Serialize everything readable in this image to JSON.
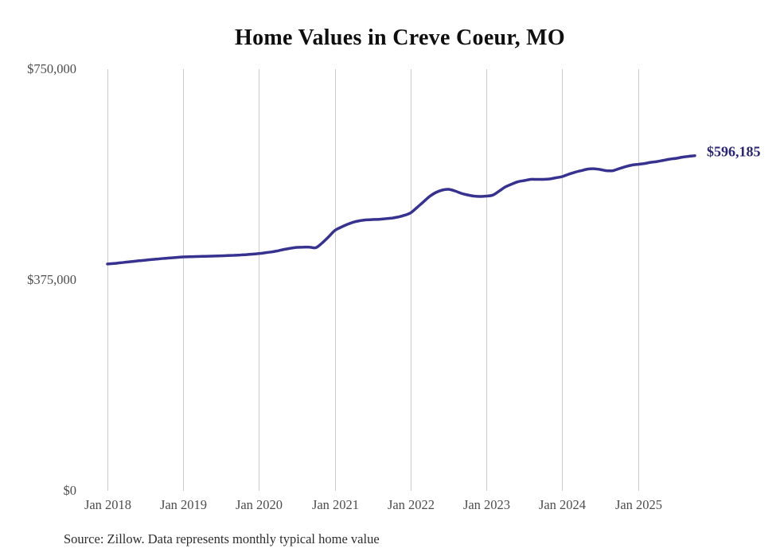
{
  "chart": {
    "title": "Home Values in Creve Coeur, MO",
    "source_note": "Source: Zillow. Data represents monthly typical home value",
    "end_label": "$596,185",
    "colors": {
      "line": "#37318f",
      "end_label": "#2b2575",
      "grid": "#cccccc",
      "axis_text": "#4d4d4d",
      "title_text": "#0f0f0f",
      "source_text": "#2d2d2d",
      "background": "#ffffff"
    }
  },
  "chart_data": {
    "type": "line",
    "title": "Home Values in Creve Coeur, MO",
    "xlabel": "",
    "ylabel": "",
    "ylim": [
      0,
      750000
    ],
    "grid": "vertical-only",
    "legend": "none",
    "y_ticks": {
      "values": [
        0,
        375000,
        750000
      ],
      "labels": [
        "$0",
        "$375,000",
        "$750,000"
      ]
    },
    "x_ticks": [
      "Jan 2018",
      "Jan 2019",
      "Jan 2020",
      "Jan 2021",
      "Jan 2022",
      "Jan 2023",
      "Jan 2024",
      "Jan 2025"
    ],
    "end_label": "$596,185",
    "source": "Source: Zillow. Data represents monthly typical home value",
    "x": [
      "Jan 2018",
      "Feb 2018",
      "Mar 2018",
      "Apr 2018",
      "May 2018",
      "Jun 2018",
      "Jul 2018",
      "Aug 2018",
      "Sep 2018",
      "Oct 2018",
      "Nov 2018",
      "Dec 2018",
      "Jan 2019",
      "Feb 2019",
      "Mar 2019",
      "Apr 2019",
      "May 2019",
      "Jun 2019",
      "Jul 2019",
      "Aug 2019",
      "Sep 2019",
      "Oct 2019",
      "Nov 2019",
      "Dec 2019",
      "Jan 2020",
      "Feb 2020",
      "Mar 2020",
      "Apr 2020",
      "May 2020",
      "Jun 2020",
      "Jul 2020",
      "Aug 2020",
      "Sep 2020",
      "Oct 2020",
      "Nov 2020",
      "Dec 2020",
      "Jan 2021",
      "Feb 2021",
      "Mar 2021",
      "Apr 2021",
      "May 2021",
      "Jun 2021",
      "Jul 2021",
      "Aug 2021",
      "Sep 2021",
      "Oct 2021",
      "Nov 2021",
      "Dec 2021",
      "Jan 2022",
      "Feb 2022",
      "Mar 2022",
      "Apr 2022",
      "May 2022",
      "Jun 2022",
      "Jul 2022",
      "Aug 2022",
      "Sep 2022",
      "Oct 2022",
      "Nov 2022",
      "Dec 2022",
      "Jan 2023",
      "Feb 2023",
      "Mar 2023",
      "Apr 2023",
      "May 2023",
      "Jun 2023",
      "Jul 2023",
      "Aug 2023",
      "Sep 2023",
      "Oct 2023",
      "Nov 2023",
      "Dec 2023",
      "Jan 2024",
      "Feb 2024",
      "Mar 2024",
      "Apr 2024",
      "May 2024",
      "Jun 2024",
      "Jul 2024",
      "Aug 2024",
      "Sep 2024",
      "Oct 2024",
      "Nov 2024",
      "Dec 2024",
      "Jan 2025",
      "Feb 2025",
      "Mar 2025",
      "Apr 2025",
      "May 2025",
      "Jun 2025",
      "Jul 2025",
      "Aug 2025",
      "Sep 2025",
      "Oct 2025"
    ],
    "values": [
      403500,
      404300,
      405500,
      406800,
      408000,
      409200,
      410300,
      411400,
      412400,
      413400,
      414300,
      415200,
      416000,
      416400,
      416700,
      417000,
      417300,
      417600,
      418000,
      418400,
      418900,
      419500,
      420200,
      421000,
      422000,
      423500,
      425000,
      427000,
      429500,
      431500,
      433000,
      433500,
      433500,
      432500,
      441000,
      451500,
      463000,
      469000,
      474000,
      478000,
      480500,
      482000,
      482500,
      483000,
      484000,
      485000,
      487000,
      490000,
      494500,
      503800,
      513700,
      523600,
      530700,
      534900,
      536300,
      533500,
      529200,
      526400,
      524300,
      523600,
      524300,
      526000,
      533000,
      540600,
      545500,
      549800,
      551900,
      554000,
      554000,
      554000,
      554700,
      556800,
      558900,
      563100,
      566600,
      569500,
      572300,
      573000,
      571600,
      569500,
      569500,
      573000,
      576500,
      579400,
      580800,
      582200,
      584300,
      585700,
      587800,
      590000,
      591400,
      593500,
      594900,
      596185
    ]
  }
}
